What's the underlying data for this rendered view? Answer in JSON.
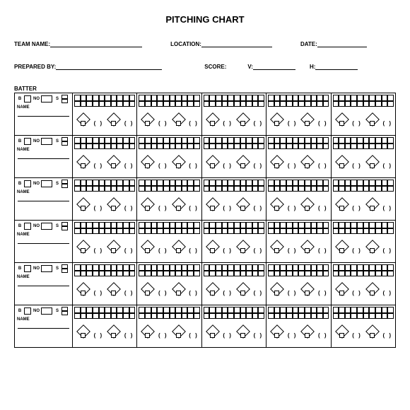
{
  "title": "PITCHING CHART",
  "header1": {
    "team_name": "TEAM NAME:",
    "location": "LOCATION:",
    "date": "DATE:"
  },
  "header2": {
    "prepared_by": "PREPARED BY:",
    "score": "SCORE:",
    "v": "V:",
    "h": "H:"
  },
  "batter_heading": "BATTER",
  "batter_cell": {
    "b": "B",
    "no": "NO",
    "s": "S",
    "b2": "B",
    "name": "NAME"
  },
  "paren": "( )",
  "layout": {
    "rows": 6,
    "pitch_cols": 5,
    "grid_cells": 20
  }
}
